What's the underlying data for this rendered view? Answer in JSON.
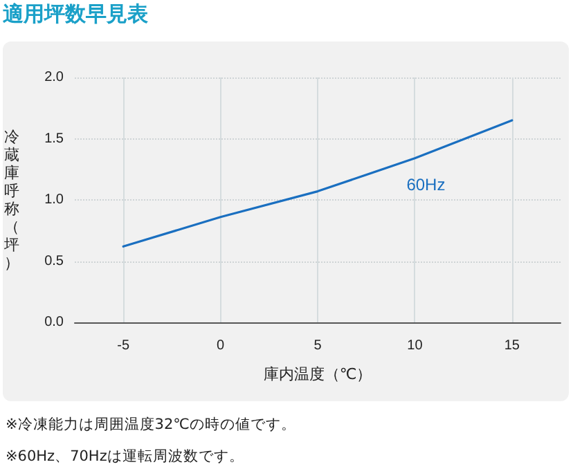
{
  "chart_data": {
    "type": "line",
    "title": "適用坪数早見表",
    "xlabel": "庫内温度（℃）",
    "ylabel": "冷蔵庫呼称（坪）",
    "x": [
      -5,
      0,
      5,
      10,
      15
    ],
    "series": [
      {
        "name": "60Hz",
        "color": "#1a6fc0",
        "values": [
          0.62,
          0.86,
          1.07,
          1.34,
          1.65
        ]
      }
    ],
    "xlim": [
      -7.5,
      17.5
    ],
    "xticks": [
      -5,
      0,
      5,
      10,
      15
    ],
    "ylim": [
      0,
      2
    ],
    "yticks": [
      {
        "value": 0,
        "label": "0.0"
      },
      {
        "value": 0.5,
        "label": "0.5"
      },
      {
        "value": 1,
        "label": "1.0"
      },
      {
        "value": 1.5,
        "label": "1.5"
      },
      {
        "value": 2,
        "label": "2.0"
      }
    ],
    "grid": true,
    "legend": false,
    "marker": "none",
    "line_style": "solid",
    "annotations": [
      "※冷凍能力は周囲温度32℃の時の値です。",
      "※60Hz、70Hzは運転周波数です。"
    ]
  }
}
